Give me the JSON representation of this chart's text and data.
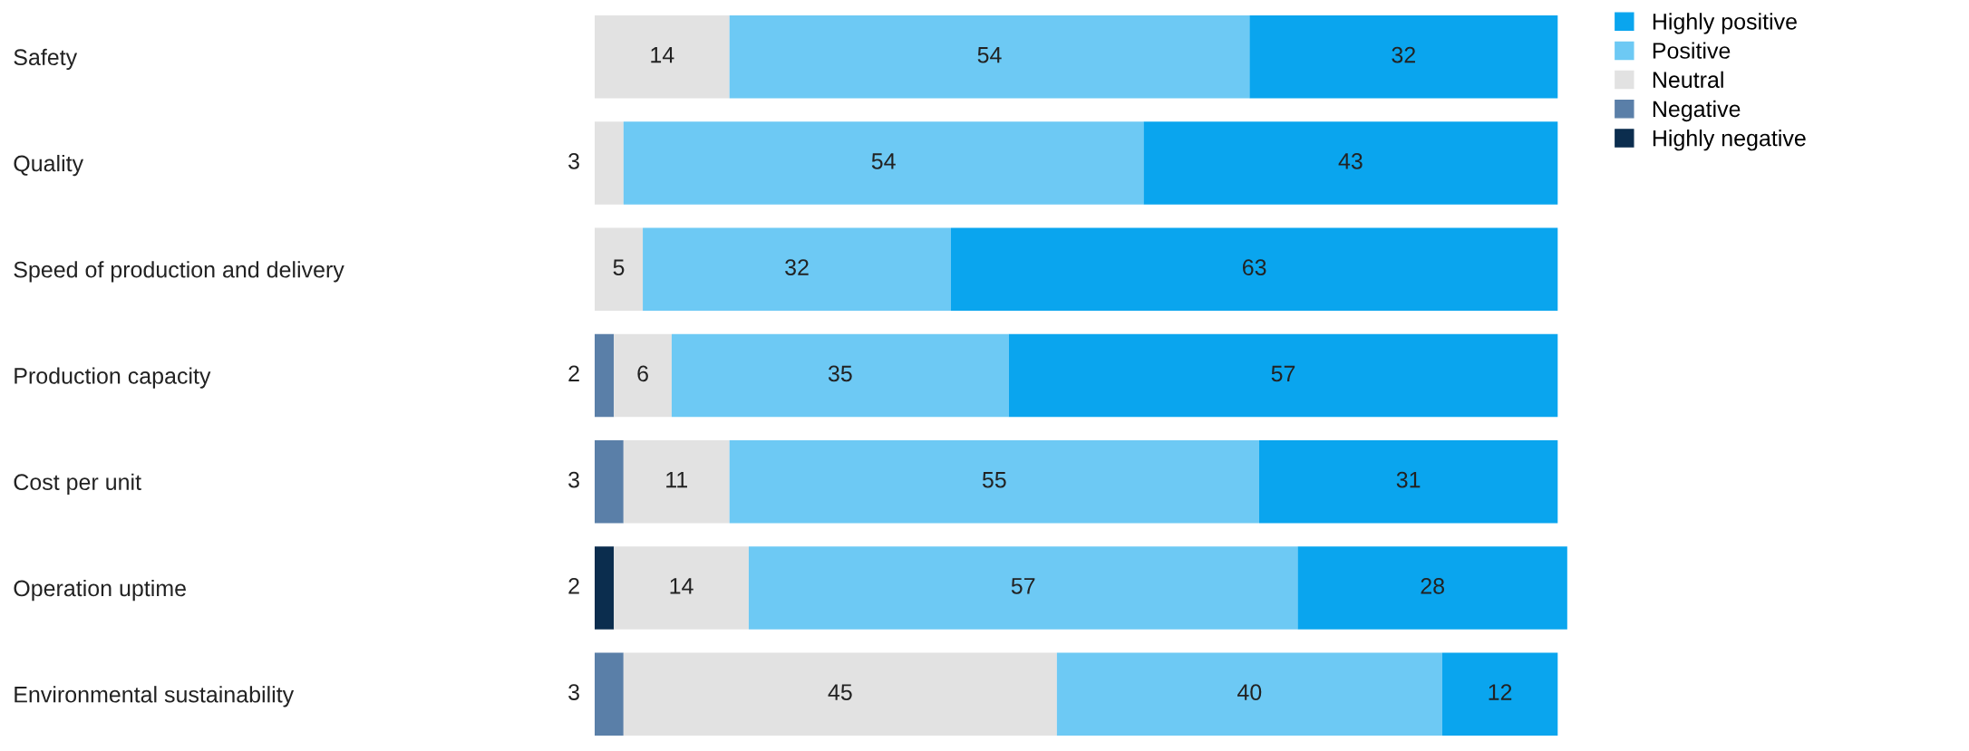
{
  "chart_data": {
    "type": "bar",
    "orientation": "horizontal",
    "stacked": true,
    "categories": [
      "Safety",
      "Quality",
      "Speed of production and delivery",
      "Production capacity",
      "Cost per unit",
      "Operation uptime",
      "Environmental sustainability"
    ],
    "series": [
      {
        "name": "Highly negative",
        "color": "#0b2d4e",
        "values": [
          null,
          null,
          null,
          null,
          null,
          2,
          null
        ]
      },
      {
        "name": "Negative",
        "color": "#5a7fa8",
        "values": [
          null,
          null,
          null,
          2,
          3,
          null,
          3
        ]
      },
      {
        "name": "Neutral",
        "color": "#e2e2e2",
        "values": [
          14,
          3,
          5,
          6,
          11,
          14,
          45
        ]
      },
      {
        "name": "Positive",
        "color": "#6dc9f4",
        "values": [
          54,
          54,
          32,
          35,
          55,
          57,
          40
        ]
      },
      {
        "name": "Highly positive",
        "color": "#0aa5ee",
        "values": [
          32,
          43,
          63,
          57,
          31,
          28,
          12
        ]
      }
    ],
    "xlim": [
      0,
      101
    ],
    "tick_labels": "y",
    "data_labels": true,
    "legend": "top right"
  }
}
